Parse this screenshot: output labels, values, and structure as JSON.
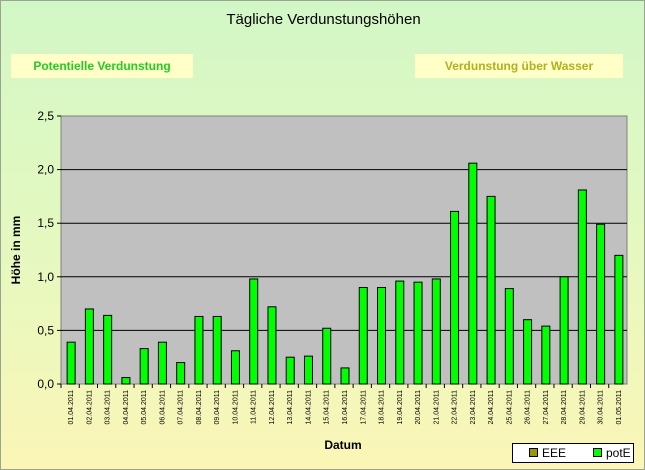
{
  "chart_data": {
    "type": "bar",
    "title": "Tägliche Verdunstungshöhen",
    "xlabel": "Datum",
    "ylabel": "Höhe in mm",
    "ylim": [
      0,
      2.5
    ],
    "yticks": [
      "0,0",
      "0,5",
      "1,0",
      "1,5",
      "2,0",
      "2,5"
    ],
    "grid": true,
    "legend_position": "bottom-right",
    "categories": [
      "01.04.2011",
      "02.04.2011",
      "03.04.2011",
      "04.04.2011",
      "05.04.2011",
      "06.04.2011",
      "07.04.2011",
      "08.04.2011",
      "09.04.2011",
      "10.04.2011",
      "11.04.2011",
      "12.04.2011",
      "13.04.2011",
      "14.04.2011",
      "15.04.2011",
      "16.04.2011",
      "17.04.2011",
      "18.04.2011",
      "19.04.2011",
      "20.04.2011",
      "21.04.2011",
      "22.04.2011",
      "23.04.2011",
      "24.04.2011",
      "25.04.2011",
      "26.04.2011",
      "27.04.2011",
      "28.04.2011",
      "29.04.2011",
      "30.04.2011",
      "01.05.2011"
    ],
    "series": [
      {
        "name": "EEE",
        "color": "#999900",
        "values": [
          0,
          0,
          0,
          0,
          0,
          0,
          0,
          0,
          0,
          0,
          0,
          0,
          0,
          0,
          0,
          0,
          0,
          0,
          0,
          0,
          0,
          0,
          0,
          0,
          0,
          0,
          0,
          0,
          0,
          0,
          0
        ]
      },
      {
        "name": "potE",
        "color": "#00ff00",
        "values": [
          0.39,
          0.7,
          0.64,
          0.06,
          0.33,
          0.39,
          0.2,
          0.63,
          0.63,
          0.31,
          0.98,
          0.72,
          0.25,
          0.26,
          0.52,
          0.15,
          0.9,
          0.9,
          0.96,
          0.95,
          0.98,
          1.61,
          2.06,
          1.75,
          0.89,
          0.6,
          0.54,
          1.0,
          1.81,
          1.49,
          1.2
        ]
      }
    ]
  },
  "buttons": {
    "potential": "Potentielle Verdunstung",
    "water": "Verdunstung über Wasser"
  },
  "colors": {
    "plot_background": "#c0c0c0",
    "bar": "#00ff00",
    "eee": "#999900"
  }
}
